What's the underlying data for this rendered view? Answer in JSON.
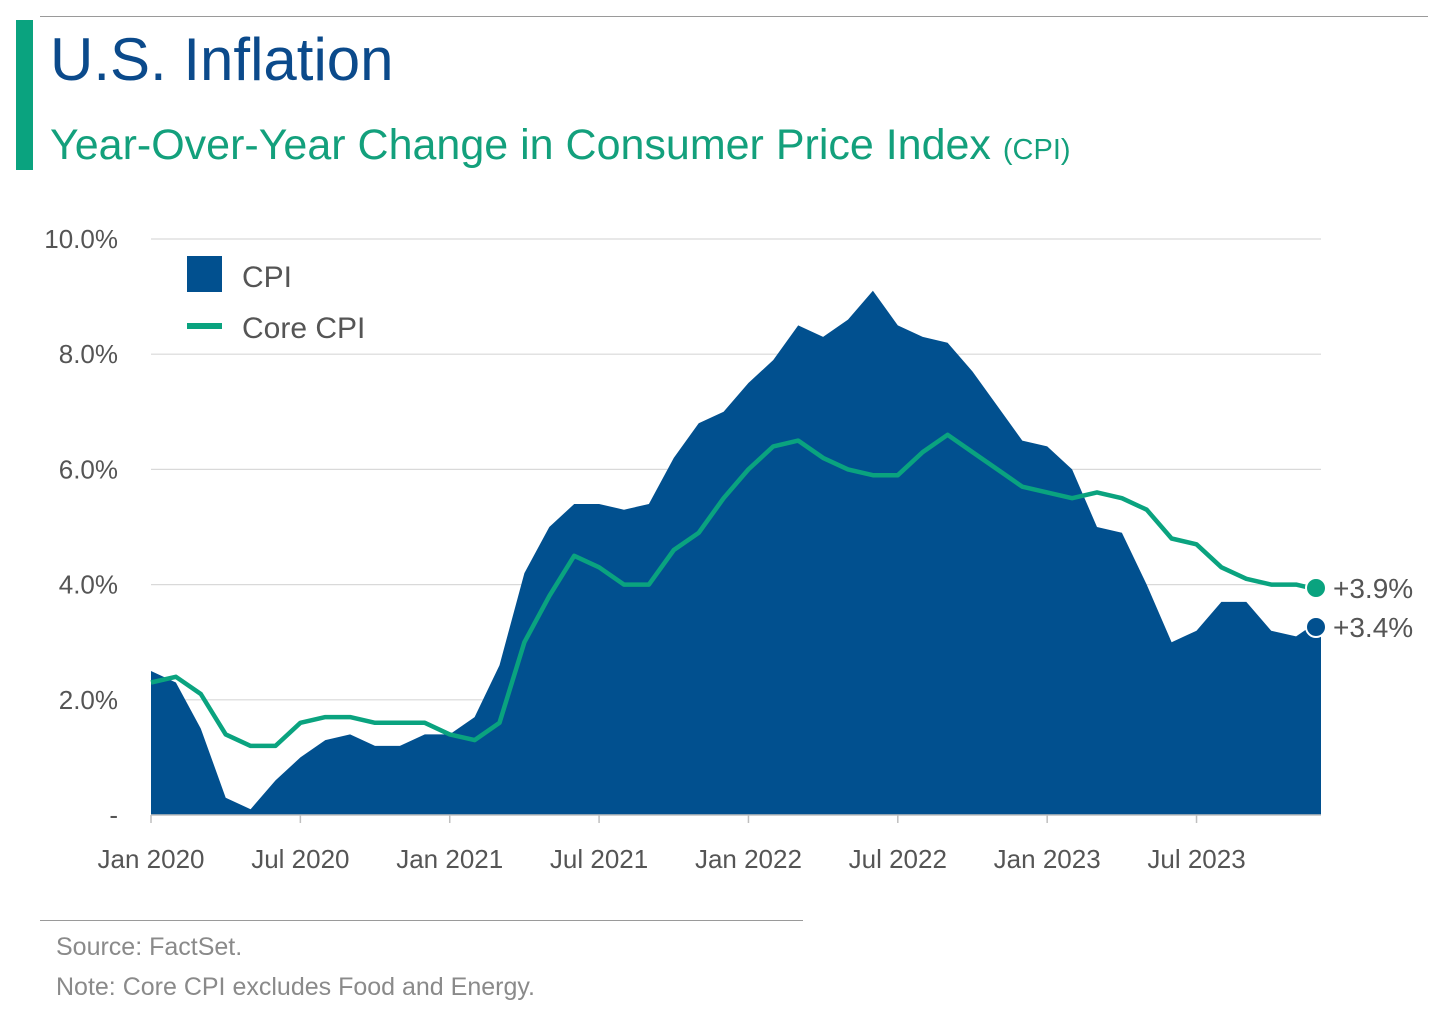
{
  "header": {
    "title": "U.S. Inflation",
    "subtitle_main": "Year-Over-Year Change in Consumer Price Index",
    "subtitle_small": "(CPI)"
  },
  "footer": {
    "source": "Source: FactSet.",
    "note": "Note: Core CPI excludes Food and Energy."
  },
  "colors": {
    "cpi": "#01508f",
    "core_cpi": "#0aa37f",
    "grid": "#d9d9d9",
    "axis": "#bfbfbf"
  },
  "chart_data": {
    "type": "area",
    "x": [
      "2020-01",
      "2020-02",
      "2020-03",
      "2020-04",
      "2020-05",
      "2020-06",
      "2020-07",
      "2020-08",
      "2020-09",
      "2020-10",
      "2020-11",
      "2020-12",
      "2021-01",
      "2021-02",
      "2021-03",
      "2021-04",
      "2021-05",
      "2021-06",
      "2021-07",
      "2021-08",
      "2021-09",
      "2021-10",
      "2021-11",
      "2021-12",
      "2022-01",
      "2022-02",
      "2022-03",
      "2022-04",
      "2022-05",
      "2022-06",
      "2022-07",
      "2022-08",
      "2022-09",
      "2022-10",
      "2022-11",
      "2022-12",
      "2023-01",
      "2023-02",
      "2023-03",
      "2023-04",
      "2023-05",
      "2023-06",
      "2023-07",
      "2023-08",
      "2023-09",
      "2023-10",
      "2023-11",
      "2023-12"
    ],
    "x_tick_labels": [
      "Jan 2020",
      "Jul 2020",
      "Jan 2021",
      "Jul 2021",
      "Jan 2022",
      "Jul 2022",
      "Jan 2023",
      "Jul 2023"
    ],
    "x_tick_index": [
      0,
      6,
      12,
      18,
      24,
      30,
      36,
      42
    ],
    "y_ticks": [
      0,
      2,
      4,
      6,
      8,
      10
    ],
    "y_tick_labels": [
      "-",
      "2.0%",
      "4.0%",
      "6.0%",
      "8.0%",
      "10.0%"
    ],
    "ylim": [
      0,
      10
    ],
    "grid": true,
    "legend": "top-left",
    "series": [
      {
        "name": "CPI",
        "style": "area",
        "values": [
          2.5,
          2.3,
          1.5,
          0.3,
          0.1,
          0.6,
          1.0,
          1.3,
          1.4,
          1.2,
          1.2,
          1.4,
          1.4,
          1.7,
          2.6,
          4.2,
          5.0,
          5.4,
          5.4,
          5.3,
          5.4,
          6.2,
          6.8,
          7.0,
          7.5,
          7.9,
          8.5,
          8.3,
          8.6,
          9.1,
          8.5,
          8.3,
          8.2,
          7.7,
          7.1,
          6.5,
          6.4,
          6.0,
          5.0,
          4.9,
          4.0,
          3.0,
          3.2,
          3.7,
          3.7,
          3.2,
          3.1,
          3.4
        ]
      },
      {
        "name": "Core CPI",
        "style": "line",
        "values": [
          2.3,
          2.4,
          2.1,
          1.4,
          1.2,
          1.2,
          1.6,
          1.7,
          1.7,
          1.6,
          1.6,
          1.6,
          1.4,
          1.3,
          1.6,
          3.0,
          3.8,
          4.5,
          4.3,
          4.0,
          4.0,
          4.6,
          4.9,
          5.5,
          6.0,
          6.4,
          6.5,
          6.2,
          6.0,
          5.9,
          5.9,
          6.3,
          6.6,
          6.3,
          6.0,
          5.7,
          5.6,
          5.5,
          5.6,
          5.5,
          5.3,
          4.8,
          4.7,
          4.3,
          4.1,
          4.0,
          4.0,
          3.9
        ]
      }
    ],
    "end_labels": [
      "+3.9%",
      "+3.4%"
    ]
  }
}
